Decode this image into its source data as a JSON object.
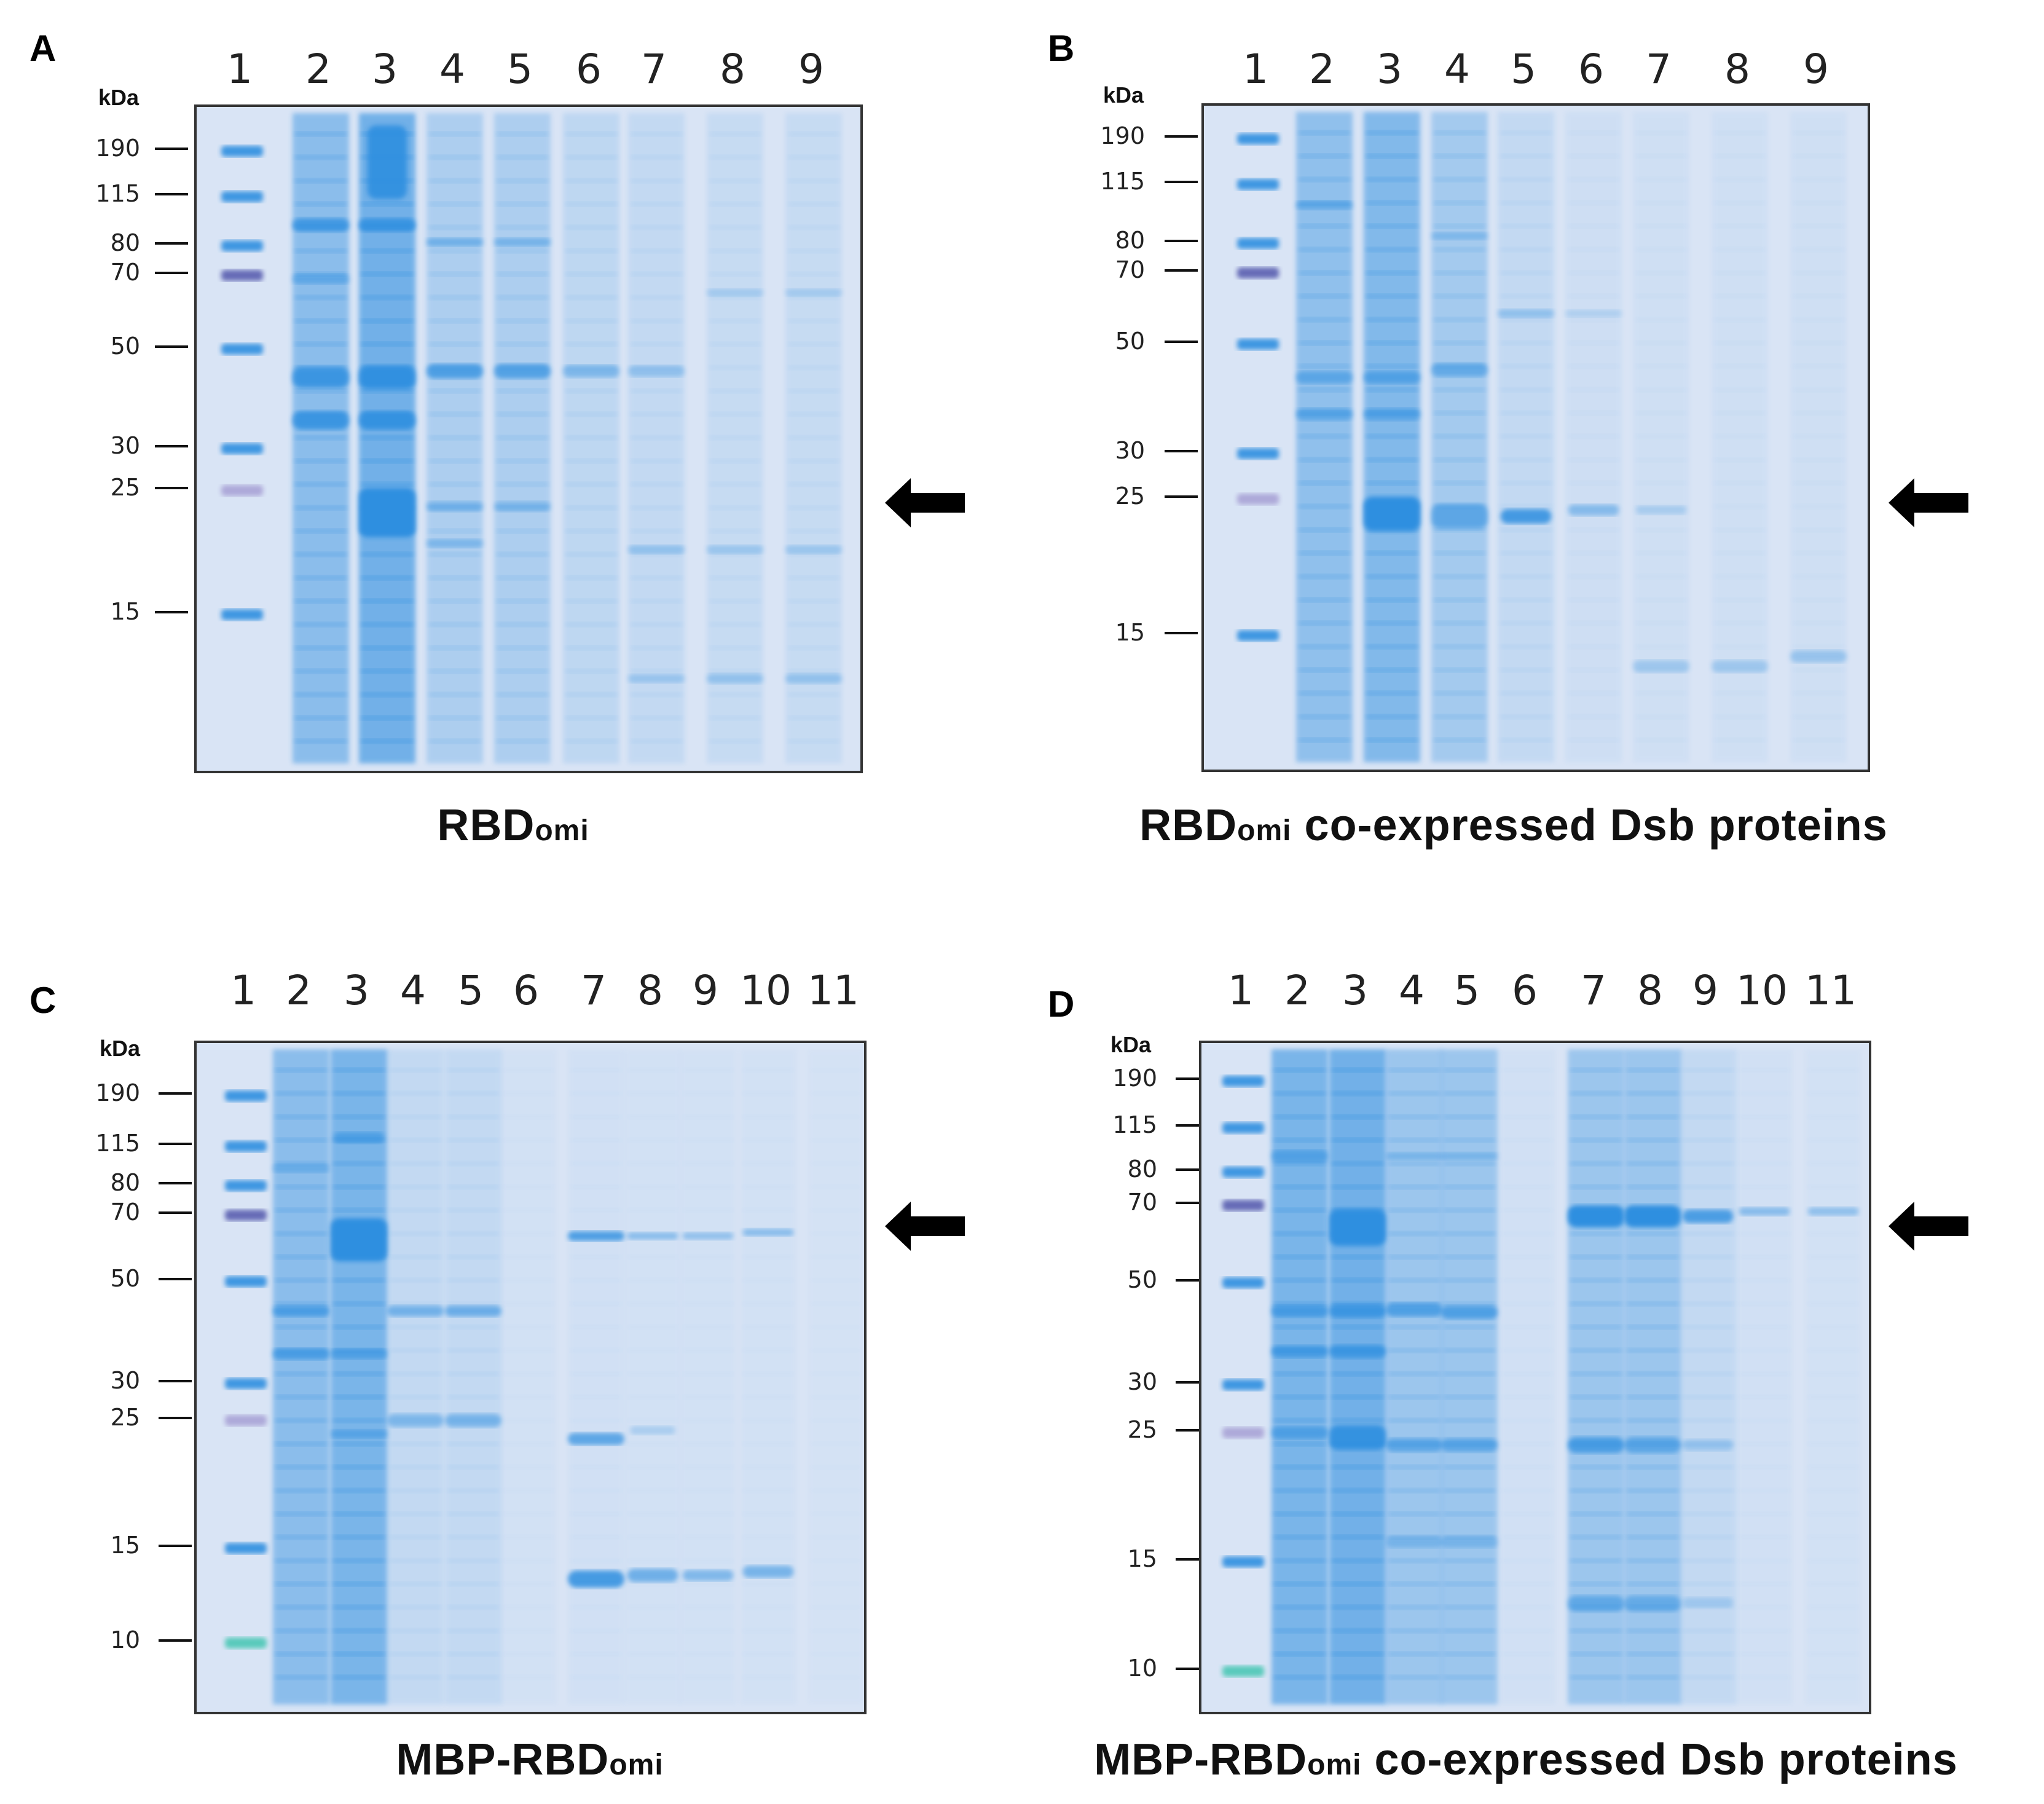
{
  "figure": {
    "panels": [
      {
        "letter": "A",
        "kda_label": "kDa",
        "lanes": [
          "1",
          "2",
          "3",
          "4",
          "5",
          "6",
          "7",
          "8",
          "9"
        ],
        "markers": [
          "190",
          "115",
          "80",
          "70",
          "50",
          "30",
          "25",
          "15"
        ],
        "caption_main": "RBD",
        "caption_sub": "omi",
        "caption_rest": "",
        "arrow_at_kda": 25,
        "arrow_icon": "left-arrow-icon"
      },
      {
        "letter": "B",
        "kda_label": "kDa",
        "lanes": [
          "1",
          "2",
          "3",
          "4",
          "5",
          "6",
          "7",
          "8",
          "9"
        ],
        "markers": [
          "190",
          "115",
          "80",
          "70",
          "50",
          "30",
          "25",
          "15"
        ],
        "caption_main": "RBD",
        "caption_sub": "omi",
        "caption_rest": " co-expressed Dsb proteins",
        "arrow_at_kda": 25,
        "arrow_icon": "left-arrow-icon"
      },
      {
        "letter": "C",
        "kda_label": "kDa",
        "lanes": [
          "1",
          "2",
          "3",
          "4",
          "5",
          "6",
          "7",
          "8",
          "9",
          "10",
          "11"
        ],
        "markers": [
          "190",
          "115",
          "80",
          "70",
          "50",
          "30",
          "25",
          "15",
          "10"
        ],
        "caption_main": "MBP-RBD",
        "caption_sub": "omi",
        "caption_rest": "",
        "arrow_at_kda": 70,
        "arrow_icon": "left-arrow-icon"
      },
      {
        "letter": "D",
        "kda_label": "kDa",
        "lanes": [
          "1",
          "2",
          "3",
          "4",
          "5",
          "6",
          "7",
          "8",
          "9",
          "10",
          "11"
        ],
        "markers": [
          "190",
          "115",
          "80",
          "70",
          "50",
          "30",
          "25",
          "15",
          "10"
        ],
        "caption_main": "MBP-RBD",
        "caption_sub": "omi",
        "caption_rest": " co-expressed Dsb proteins",
        "arrow_at_kda": 70,
        "arrow_icon": "left-arrow-icon"
      }
    ],
    "colors": {
      "gel_background": "#d9e4f5",
      "band_blue": "#2f8fe0",
      "marker_purple": "#5a5fb0",
      "marker_pink": "#a9a3d6",
      "marker_green": "#4cc7b6"
    }
  }
}
